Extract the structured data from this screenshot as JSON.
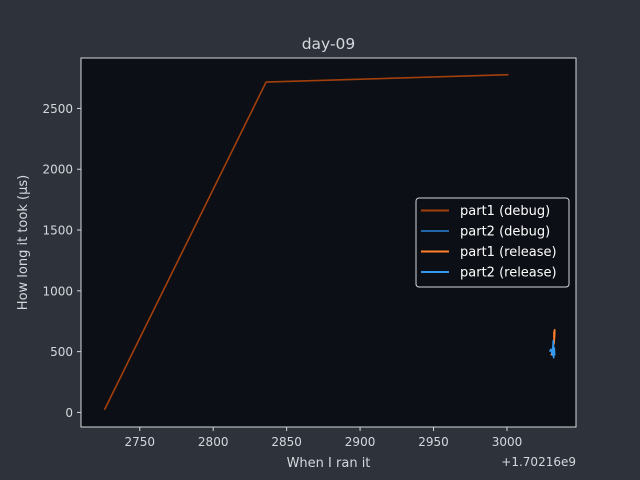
{
  "chart_data": {
    "type": "line",
    "title": "day-09",
    "xlabel": "When I ran it",
    "ylabel": "How long it took (µs)",
    "x_offset_label": "+1.70216e9",
    "xlim": [
      2710,
      3047
    ],
    "ylim": [
      -120,
      2915
    ],
    "x_ticks": [
      2750,
      2800,
      2850,
      2900,
      2950,
      3000
    ],
    "y_ticks": [
      0,
      500,
      1000,
      1500,
      2000,
      2500
    ],
    "legend_position": "center-right",
    "grid": false,
    "series": [
      {
        "name": "part1 (debug)",
        "color": "#a33f0c",
        "points": [
          [
            2726,
            22
          ],
          [
            2836,
            2717
          ],
          [
            3001,
            2778
          ]
        ]
      },
      {
        "name": "part2 (debug)",
        "color": "#2266aa",
        "points": [
          [
            3031,
            520
          ],
          [
            3031.5,
            480
          ]
        ]
      },
      {
        "name": "part1 (release)",
        "color": "#ff7f2a",
        "points": [
          [
            3030,
            470
          ],
          [
            3031,
            500
          ],
          [
            3031.5,
            540
          ],
          [
            3032,
            600
          ],
          [
            3032,
            660
          ],
          [
            3032.5,
            680
          ],
          [
            3032.5,
            640
          ],
          [
            3032,
            560
          ]
        ]
      },
      {
        "name": "part2 (release)",
        "color": "#3399ee",
        "points": [
          [
            3029,
            500
          ],
          [
            3030,
            520
          ],
          [
            3031,
            470
          ],
          [
            3031.5,
            590
          ],
          [
            3031.8,
            450
          ],
          [
            3032.2,
            530
          ],
          [
            3032.5,
            470
          ]
        ]
      }
    ]
  }
}
